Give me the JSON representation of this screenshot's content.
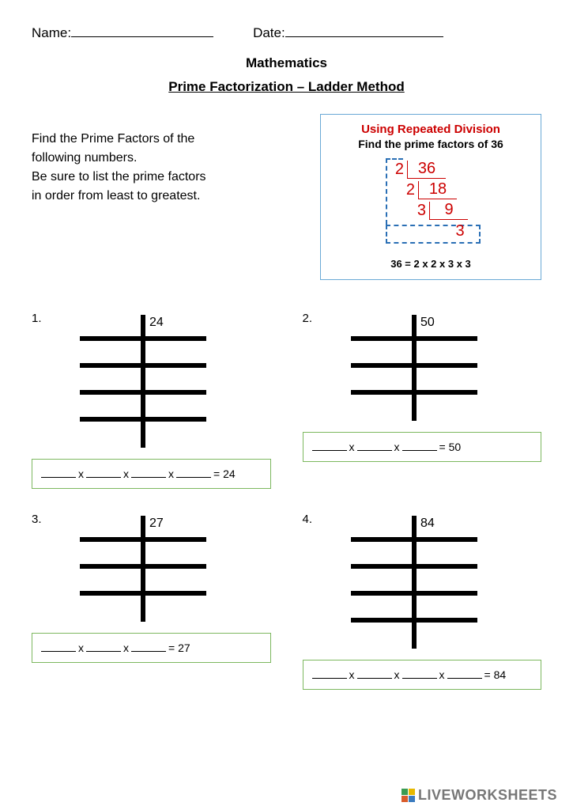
{
  "header": {
    "name_label": "Name:",
    "date_label": "Date:",
    "name_line_width": 180,
    "date_line_width": 200
  },
  "title": "Mathematics",
  "subtitle": "Prime Factorization – Ladder Method",
  "intro": {
    "line1": "Find the Prime Factors of the",
    "line2": "following numbers.",
    "line3": "Be sure to list the prime factors",
    "line4": "in order from least to greatest."
  },
  "example": {
    "title": "Using Repeated Division",
    "subtitle": "Find the prime factors of 36",
    "rows": [
      {
        "divisor": "2",
        "value": "36"
      },
      {
        "divisor": "2",
        "value": "18"
      },
      {
        "divisor": "3",
        "value": "9"
      },
      {
        "divisor": "",
        "value": "3"
      }
    ],
    "result": "36 = 2 x 2 x 3 x 3",
    "colors": {
      "border": "#6aa9d6",
      "red": "#cc0000",
      "dashed": "#2a6fb5"
    }
  },
  "problems": [
    {
      "n": "1.",
      "number": "24",
      "rungs": 4,
      "factors": 4,
      "equals": "= 24"
    },
    {
      "n": "2.",
      "number": "50",
      "rungs": 3,
      "factors": 3,
      "equals": "= 50"
    },
    {
      "n": "3.",
      "number": "27",
      "rungs": 3,
      "factors": 3,
      "equals": "= 27"
    },
    {
      "n": "4.",
      "number": "84",
      "rungs": 4,
      "factors": 4,
      "equals": "= 84"
    }
  ],
  "footer": {
    "text": "LIVEWORKSHEETS"
  },
  "style": {
    "ladder": {
      "stroke": "#000000",
      "stroke_width": 6,
      "rung_spacing": 34,
      "width": 160,
      "top_pad": 26
    },
    "answer_border": "#7db85f"
  }
}
